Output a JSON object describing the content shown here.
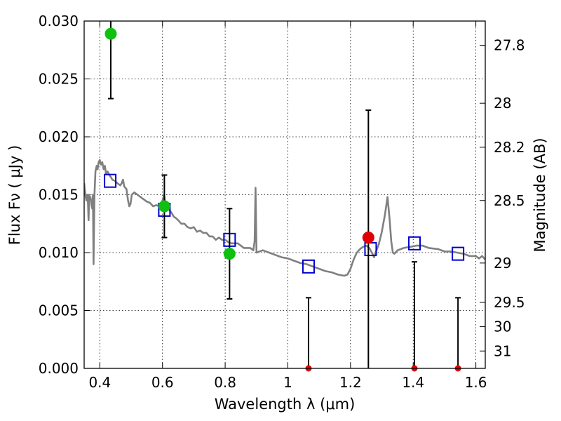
{
  "chart_data": {
    "type": "scatter",
    "xlabel": "Wavelength  λ (μm)",
    "ylabel": "Flux  Fν  ( μJy )",
    "y2label": "Magnitude (AB)",
    "xlim": [
      0.35,
      1.63
    ],
    "ylim": [
      0.0,
      0.03
    ],
    "grid": true,
    "x_ticks": [
      {
        "value": 0.4,
        "label": "0.4"
      },
      {
        "value": 0.6,
        "label": "0.6"
      },
      {
        "value": 0.8,
        "label": "0.8"
      },
      {
        "value": 1.0,
        "label": "1"
      },
      {
        "value": 1.2,
        "label": "1.2"
      },
      {
        "value": 1.4,
        "label": "1.4"
      },
      {
        "value": 1.6,
        "label": "1.6"
      }
    ],
    "y_ticks": [
      {
        "value": 0.0,
        "label": "0.000"
      },
      {
        "value": 0.005,
        "label": "0.005"
      },
      {
        "value": 0.01,
        "label": "0.010"
      },
      {
        "value": 0.015,
        "label": "0.015"
      },
      {
        "value": 0.02,
        "label": "0.020"
      },
      {
        "value": 0.025,
        "label": "0.025"
      },
      {
        "value": 0.03,
        "label": "0.030"
      }
    ],
    "mag_ticks": [
      {
        "value": 27.8,
        "flux": 0.0279,
        "label": "27.8"
      },
      {
        "value": 28.0,
        "flux": 0.0229,
        "label": "28"
      },
      {
        "value": 28.2,
        "flux": 0.0191,
        "label": "28.2"
      },
      {
        "value": 28.5,
        "flux": 0.0145,
        "label": "28.5"
      },
      {
        "value": 29.0,
        "flux": 0.0091,
        "label": "29"
      },
      {
        "value": 29.5,
        "flux": 0.0057,
        "label": "29.5"
      },
      {
        "value": 30.0,
        "flux": 0.0036,
        "label": "30"
      },
      {
        "value": 31.0,
        "flux": 0.0015,
        "label": "31"
      }
    ],
    "sed_model": {
      "color": "#808080",
      "points": [
        [
          0.35,
          0.016
        ],
        [
          0.352,
          0.0155
        ],
        [
          0.355,
          0.0148
        ],
        [
          0.357,
          0.0145
        ],
        [
          0.36,
          0.015
        ],
        [
          0.362,
          0.0144
        ],
        [
          0.364,
          0.0128
        ],
        [
          0.366,
          0.015
        ],
        [
          0.368,
          0.0147
        ],
        [
          0.37,
          0.0148
        ],
        [
          0.372,
          0.0145
        ],
        [
          0.374,
          0.014
        ],
        [
          0.376,
          0.0138
        ],
        [
          0.378,
          0.015
        ],
        [
          0.38,
          0.009
        ],
        [
          0.383,
          0.015
        ],
        [
          0.386,
          0.017
        ],
        [
          0.39,
          0.0175
        ],
        [
          0.393,
          0.0172
        ],
        [
          0.396,
          0.0178
        ],
        [
          0.4,
          0.018
        ],
        [
          0.404,
          0.0176
        ],
        [
          0.408,
          0.0178
        ],
        [
          0.412,
          0.0172
        ],
        [
          0.416,
          0.0175
        ],
        [
          0.42,
          0.0168
        ],
        [
          0.425,
          0.017
        ],
        [
          0.43,
          0.0167
        ],
        [
          0.436,
          0.0165
        ],
        [
          0.44,
          0.0163
        ],
        [
          0.448,
          0.0162
        ],
        [
          0.456,
          0.016
        ],
        [
          0.465,
          0.0158
        ],
        [
          0.47,
          0.016
        ],
        [
          0.474,
          0.0163
        ],
        [
          0.478,
          0.0157
        ],
        [
          0.485,
          0.0155
        ],
        [
          0.49,
          0.0145
        ],
        [
          0.494,
          0.014
        ],
        [
          0.498,
          0.0142
        ],
        [
          0.502,
          0.015
        ],
        [
          0.51,
          0.0152
        ],
        [
          0.52,
          0.015
        ],
        [
          0.53,
          0.0148
        ],
        [
          0.54,
          0.0146
        ],
        [
          0.55,
          0.0144
        ],
        [
          0.56,
          0.0143
        ],
        [
          0.57,
          0.014
        ],
        [
          0.58,
          0.0141
        ],
        [
          0.59,
          0.014
        ],
        [
          0.6,
          0.0145
        ],
        [
          0.605,
          0.015
        ],
        [
          0.61,
          0.0141
        ],
        [
          0.618,
          0.0139
        ],
        [
          0.624,
          0.0136
        ],
        [
          0.63,
          0.0134
        ],
        [
          0.636,
          0.0131
        ],
        [
          0.642,
          0.013
        ],
        [
          0.65,
          0.0128
        ],
        [
          0.66,
          0.0125
        ],
        [
          0.67,
          0.0125
        ],
        [
          0.68,
          0.0122
        ],
        [
          0.69,
          0.0121
        ],
        [
          0.7,
          0.0122
        ],
        [
          0.71,
          0.0118
        ],
        [
          0.72,
          0.0119
        ],
        [
          0.73,
          0.0117
        ],
        [
          0.74,
          0.0117
        ],
        [
          0.75,
          0.0114
        ],
        [
          0.76,
          0.0114
        ],
        [
          0.77,
          0.0111
        ],
        [
          0.78,
          0.0113
        ],
        [
          0.79,
          0.0111
        ],
        [
          0.8,
          0.0111
        ],
        [
          0.81,
          0.0109
        ],
        [
          0.82,
          0.0108
        ],
        [
          0.84,
          0.0108
        ],
        [
          0.86,
          0.0104
        ],
        [
          0.88,
          0.0104
        ],
        [
          0.89,
          0.0102
        ],
        [
          0.894,
          0.011
        ],
        [
          0.897,
          0.0156
        ],
        [
          0.9,
          0.01
        ],
        [
          0.92,
          0.0102
        ],
        [
          0.94,
          0.01
        ],
        [
          0.96,
          0.0098
        ],
        [
          0.98,
          0.0096
        ],
        [
          1.0,
          0.0095
        ],
        [
          1.02,
          0.0093
        ],
        [
          1.04,
          0.0091
        ],
        [
          1.06,
          0.009
        ],
        [
          1.08,
          0.0088
        ],
        [
          1.1,
          0.0086
        ],
        [
          1.12,
          0.0084
        ],
        [
          1.14,
          0.0083
        ],
        [
          1.16,
          0.0081
        ],
        [
          1.18,
          0.008
        ],
        [
          1.19,
          0.0081
        ],
        [
          1.2,
          0.0086
        ],
        [
          1.21,
          0.0094
        ],
        [
          1.22,
          0.01
        ],
        [
          1.23,
          0.0103
        ],
        [
          1.24,
          0.0105
        ],
        [
          1.25,
          0.0106
        ],
        [
          1.26,
          0.0104
        ],
        [
          1.27,
          0.0099
        ],
        [
          1.275,
          0.0096
        ],
        [
          1.28,
          0.01
        ],
        [
          1.29,
          0.0107
        ],
        [
          1.3,
          0.0118
        ],
        [
          1.31,
          0.0133
        ],
        [
          1.318,
          0.0148
        ],
        [
          1.325,
          0.0128
        ],
        [
          1.33,
          0.011
        ],
        [
          1.335,
          0.01
        ],
        [
          1.34,
          0.0099
        ],
        [
          1.35,
          0.0102
        ],
        [
          1.37,
          0.0104
        ],
        [
          1.39,
          0.0105
        ],
        [
          1.41,
          0.0106
        ],
        [
          1.43,
          0.0106
        ],
        [
          1.45,
          0.0104
        ],
        [
          1.48,
          0.0103
        ],
        [
          1.5,
          0.0101
        ],
        [
          1.52,
          0.0101
        ],
        [
          1.54,
          0.01
        ],
        [
          1.56,
          0.0099
        ],
        [
          1.58,
          0.0097
        ],
        [
          1.6,
          0.0097
        ],
        [
          1.61,
          0.0095
        ],
        [
          1.62,
          0.0097
        ],
        [
          1.63,
          0.0094
        ]
      ]
    },
    "model_photometry": {
      "color": "#0000cc",
      "points": [
        {
          "x": 0.433,
          "y": 0.0162
        },
        {
          "x": 0.606,
          "y": 0.0137
        },
        {
          "x": 0.814,
          "y": 0.0111
        },
        {
          "x": 1.066,
          "y": 0.0088
        },
        {
          "x": 1.264,
          "y": 0.0103
        },
        {
          "x": 1.404,
          "y": 0.0108
        },
        {
          "x": 1.543,
          "y": 0.0099
        }
      ]
    },
    "detections": {
      "color": "#10c010",
      "points": [
        {
          "x": 0.435,
          "y": 0.0289,
          "yerr_low": 0.0233,
          "yerr_high": 0.03
        },
        {
          "x": 0.606,
          "y": 0.014,
          "yerr_low": 0.0113,
          "yerr_high": 0.0167
        },
        {
          "x": 0.814,
          "y": 0.0099,
          "yerr_low": 0.006,
          "yerr_high": 0.0138
        }
      ]
    },
    "nondetections": {
      "color": "#e00000",
      "points": [
        {
          "x": 1.066,
          "y": 0.0,
          "yerr_low": 0.0,
          "yerr_high": 0.0061
        },
        {
          "x": 1.257,
          "y": 0.0113,
          "yerr_low": 0.0,
          "yerr_high": 0.0223
        },
        {
          "x": 1.404,
          "y": 0.0,
          "yerr_low": 0.0,
          "yerr_high": 0.0092
        },
        {
          "x": 1.543,
          "y": 0.0,
          "yerr_low": 0.0,
          "yerr_high": 0.0061
        }
      ]
    }
  }
}
